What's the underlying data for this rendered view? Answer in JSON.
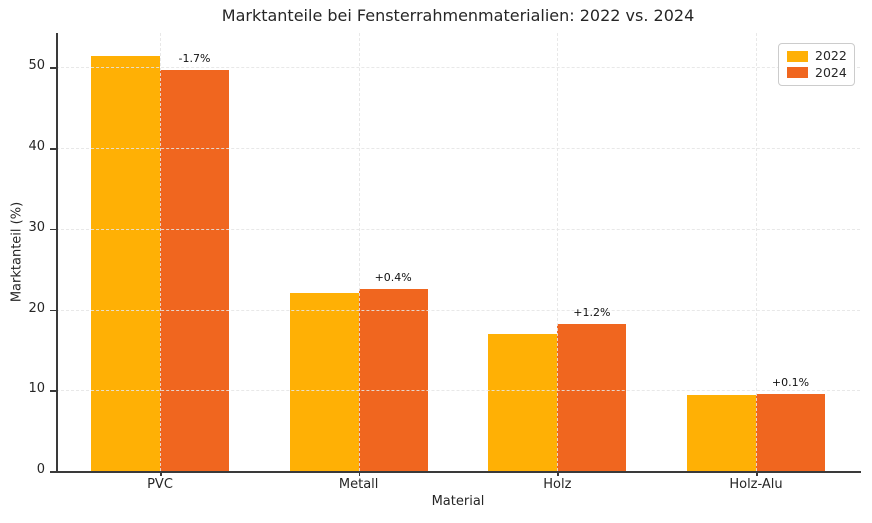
{
  "chart_data": {
    "type": "bar",
    "title": "Marktanteile bei Fensterrahmenmaterialien: 2022 vs. 2024",
    "xlabel": "Material",
    "ylabel": "Marktanteil (%)",
    "categories": [
      "PVC",
      "Metall",
      "Holz",
      "Holz-Alu"
    ],
    "series": [
      {
        "name": "2022",
        "color": "#FFB005",
        "values": [
          51.4,
          22.1,
          17.0,
          9.4
        ]
      },
      {
        "name": "2024",
        "color": "#F0661F",
        "values": [
          49.7,
          22.5,
          18.2,
          9.5
        ]
      }
    ],
    "delta_labels": [
      "-1.7%",
      "+0.4%",
      "+1.2%",
      "+0.1%"
    ],
    "yticks": [
      0,
      10,
      20,
      30,
      40,
      50
    ],
    "ylim": [
      0,
      54.25
    ],
    "grid": "dashed horizontal and vertical gridlines drawn above bars",
    "legend_position": "upper right",
    "legend_entries": [
      "2022",
      "2024"
    ]
  },
  "style": {
    "color_2022": "#FFB005",
    "color_2024": "#F0661F",
    "grid_color": "#E5E5E5",
    "spine_color": "#3A3A3A",
    "text_color": "#262626",
    "background": "#FFFFFF"
  }
}
